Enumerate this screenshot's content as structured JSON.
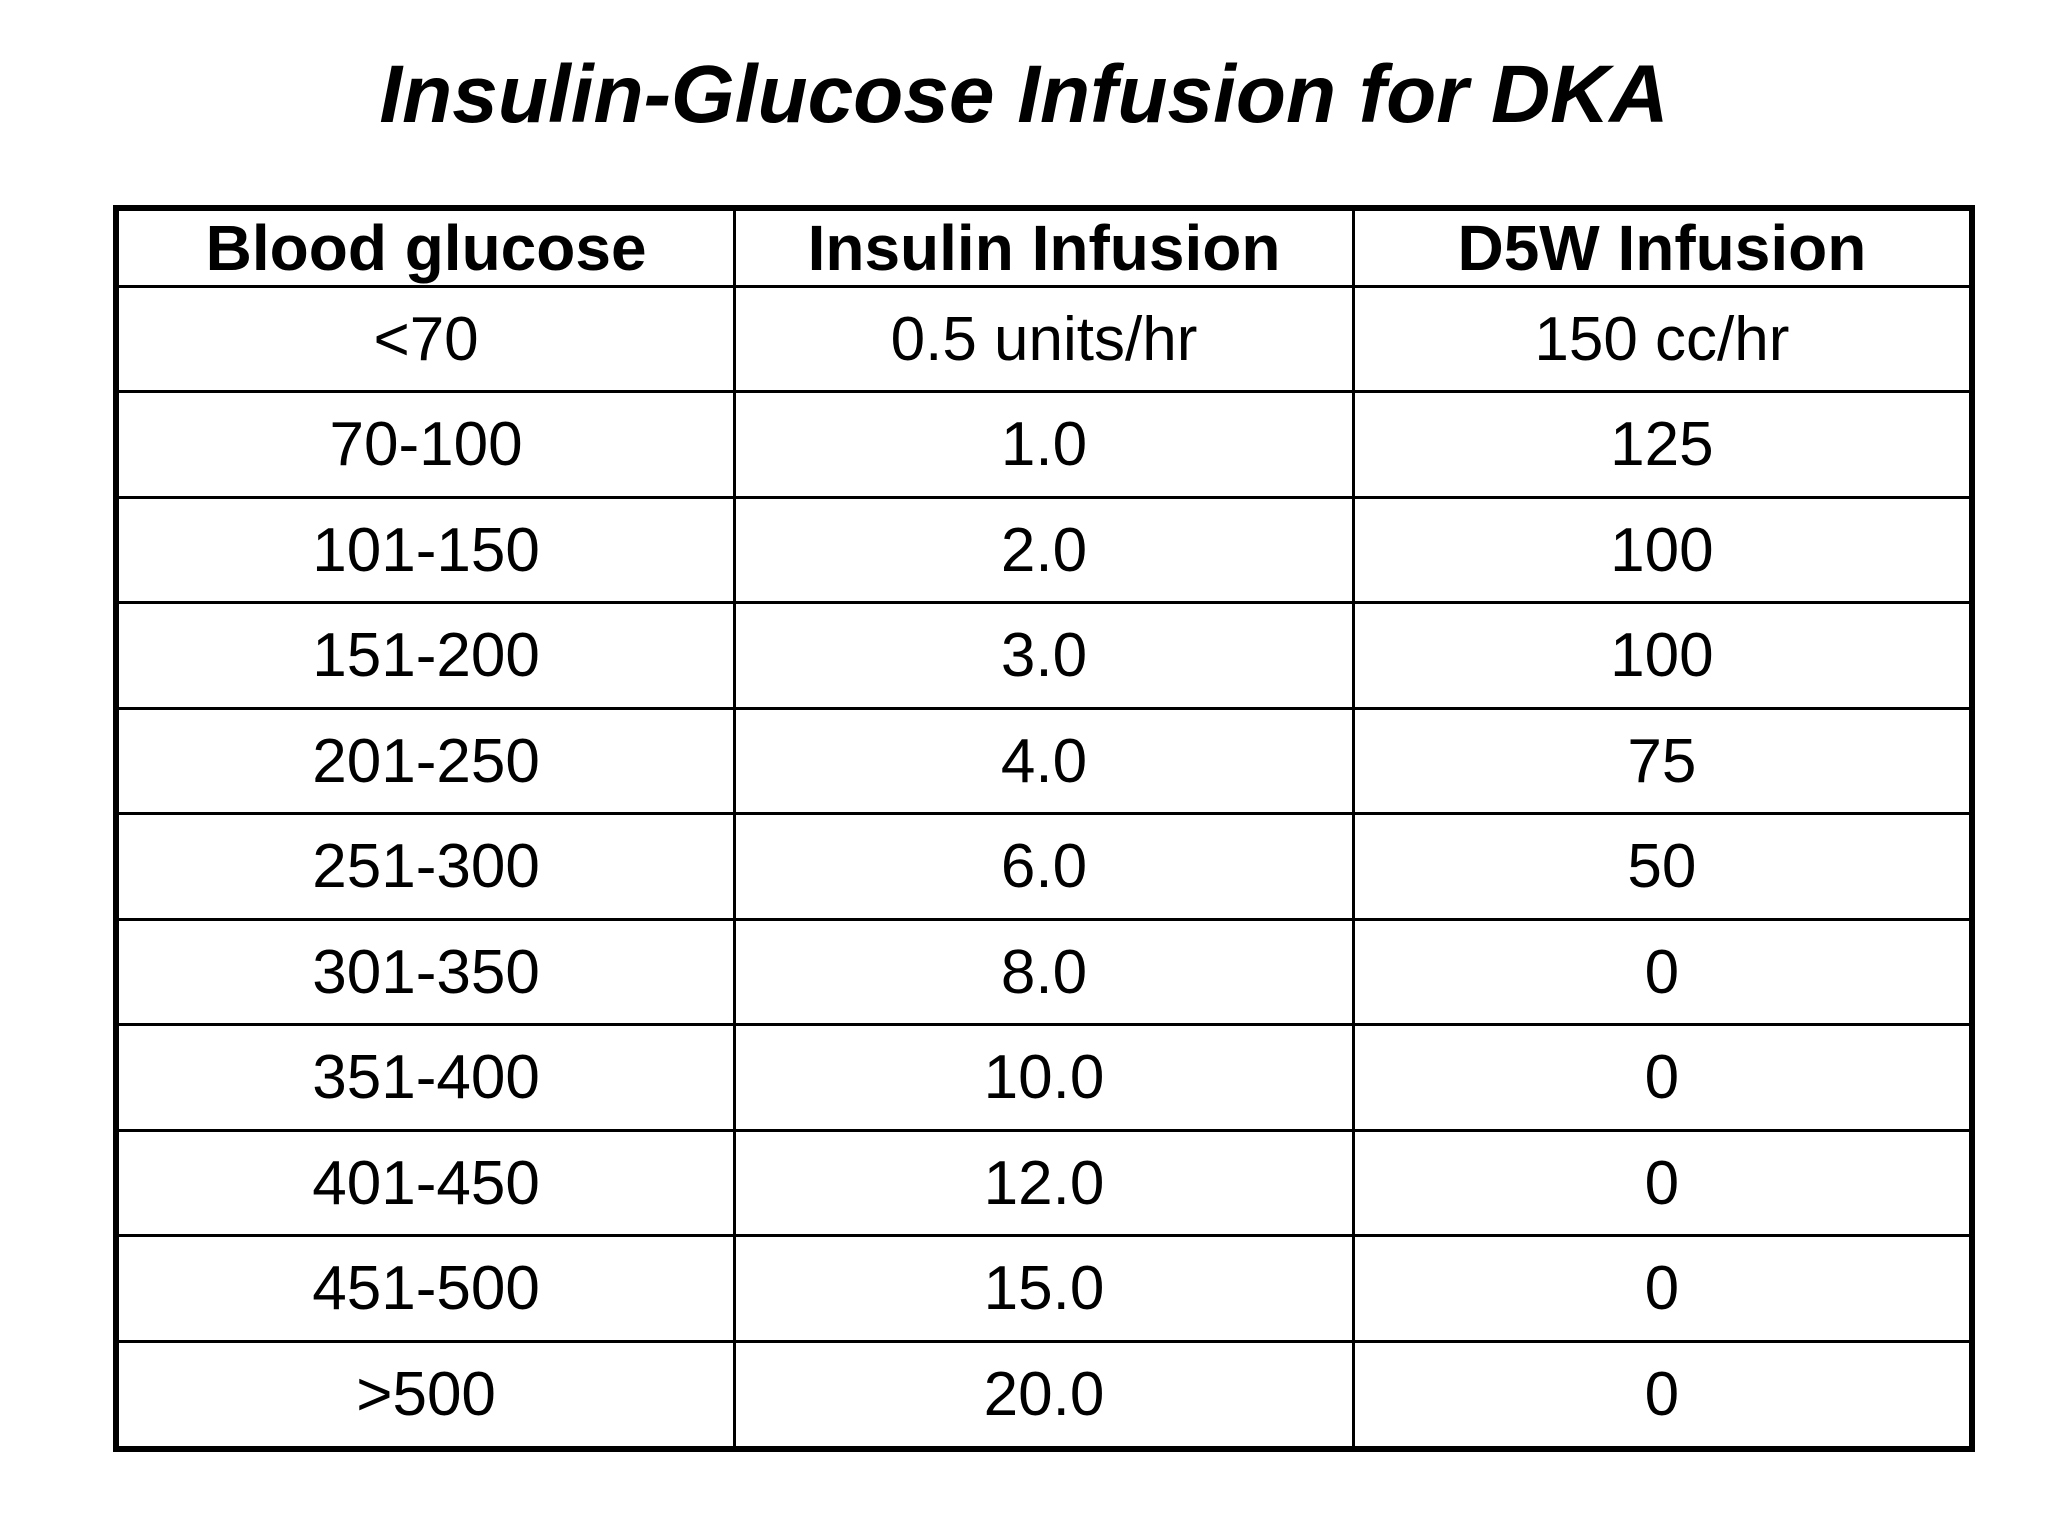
{
  "page": {
    "background_color": "#ffffff",
    "text_color": "#000000",
    "border_color": "#000000"
  },
  "title": "Insulin-Glucose Infusion for DKA",
  "chart_data": {
    "type": "table",
    "title": "Insulin-Glucose Infusion for DKA",
    "columns": [
      "Blood glucose",
      "Insulin Infusion",
      "D5W Infusion"
    ],
    "rows": [
      [
        "<70",
        "0.5 units/hr",
        "150 cc/hr"
      ],
      [
        "70-100",
        "1.0",
        "125"
      ],
      [
        "101-150",
        "2.0",
        "100"
      ],
      [
        "151-200",
        "3.0",
        "100"
      ],
      [
        "201-250",
        "4.0",
        "75"
      ],
      [
        "251-300",
        "6.0",
        "50"
      ],
      [
        "301-350",
        "8.0",
        "0"
      ],
      [
        "351-400",
        "10.0",
        "0"
      ],
      [
        "401-450",
        "12.0",
        "0"
      ],
      [
        "451-500",
        "15.0",
        "0"
      ],
      [
        ">500",
        "20.0",
        "0"
      ]
    ],
    "layout": {
      "header_bold": true,
      "grid": true,
      "title_style": "bold-italic",
      "columns_count": 3,
      "rows_count": 11
    }
  }
}
